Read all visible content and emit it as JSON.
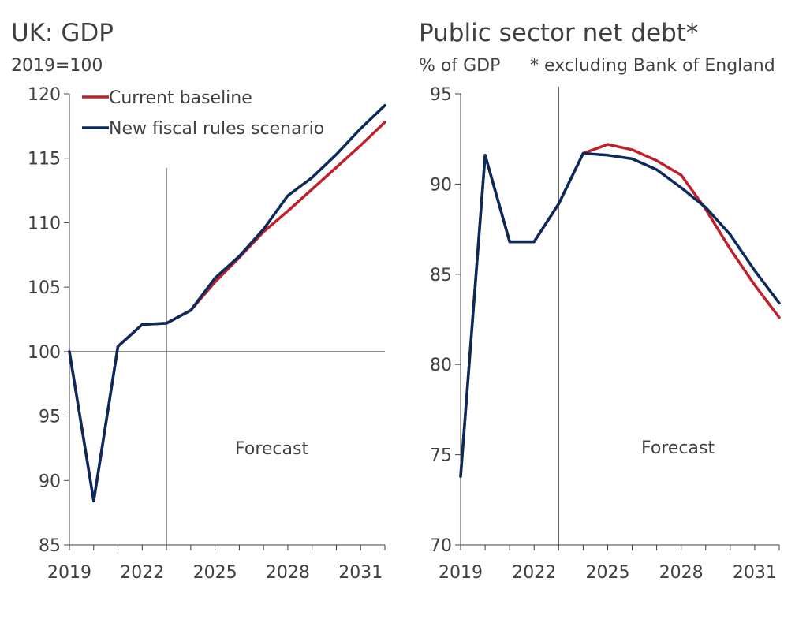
{
  "colors": {
    "current_baseline": "#c0202a",
    "new_fiscal_rules": "#0b2a5c",
    "axis": "#404040"
  },
  "chart_data": [
    {
      "type": "line",
      "title": "UK: GDP",
      "subtitle": "2019=100",
      "xlabel": "",
      "ylabel": "2019=100",
      "x": [
        2019,
        2020,
        2021,
        2022,
        2023,
        2024,
        2025,
        2026,
        2027,
        2028,
        2029,
        2030,
        2031,
        2032
      ],
      "xtick_labels": [
        "2019",
        "2022",
        "2025",
        "2028",
        "2031"
      ],
      "xtick_values": [
        2019,
        2022,
        2025,
        2028,
        2031
      ],
      "ylim": [
        85,
        120
      ],
      "yticks": [
        85,
        90,
        95,
        100,
        105,
        110,
        115,
        120
      ],
      "ytick_labels": [
        "85",
        "90",
        "95",
        "100",
        "105",
        "110",
        "115",
        "120"
      ],
      "reference_line_y": 100,
      "forecast_start_x": 2023,
      "annotation": "Forecast",
      "legend": [
        "Current baseline",
        "New fiscal rules scenario"
      ],
      "legend_position": "top-left",
      "series": [
        {
          "name": "Current baseline",
          "color_key": "current_baseline",
          "values": [
            100,
            88.4,
            100.4,
            102.1,
            102.2,
            103.2,
            105.4,
            107.3,
            109.3,
            110.9,
            112.6,
            114.3,
            116.0,
            117.8
          ]
        },
        {
          "name": "New fiscal rules scenario",
          "color_key": "new_fiscal_rules",
          "values": [
            100,
            88.4,
            100.4,
            102.1,
            102.2,
            103.2,
            105.7,
            107.4,
            109.5,
            112.1,
            113.5,
            115.3,
            117.3,
            119.1
          ]
        }
      ]
    },
    {
      "type": "line",
      "title": "Public sector net debt*",
      "subtitle": "% of GDP",
      "note": "* excluding Bank of England",
      "xlabel": "",
      "ylabel": "% of GDP",
      "x": [
        2019,
        2020,
        2021,
        2022,
        2023,
        2024,
        2025,
        2026,
        2027,
        2028,
        2029,
        2030,
        2031,
        2032
      ],
      "xtick_labels": [
        "2019",
        "2022",
        "2025",
        "2028",
        "2031"
      ],
      "xtick_values": [
        2019,
        2022,
        2025,
        2028,
        2031
      ],
      "ylim": [
        70,
        95
      ],
      "yticks": [
        70,
        75,
        80,
        85,
        90,
        95
      ],
      "ytick_labels": [
        "70",
        "75",
        "80",
        "85",
        "90",
        "95"
      ],
      "forecast_start_x": 2023,
      "annotation": "Forecast",
      "series": [
        {
          "name": "Current baseline",
          "color_key": "current_baseline",
          "values": [
            73.8,
            91.6,
            86.8,
            86.8,
            88.9,
            91.7,
            92.2,
            91.9,
            91.3,
            90.5,
            88.6,
            86.4,
            84.4,
            82.6
          ]
        },
        {
          "name": "New fiscal rules scenario",
          "color_key": "new_fiscal_rules",
          "values": [
            73.8,
            91.6,
            86.8,
            86.8,
            88.9,
            91.7,
            91.6,
            91.4,
            90.8,
            89.8,
            88.7,
            87.2,
            85.2,
            83.4
          ]
        }
      ]
    }
  ]
}
